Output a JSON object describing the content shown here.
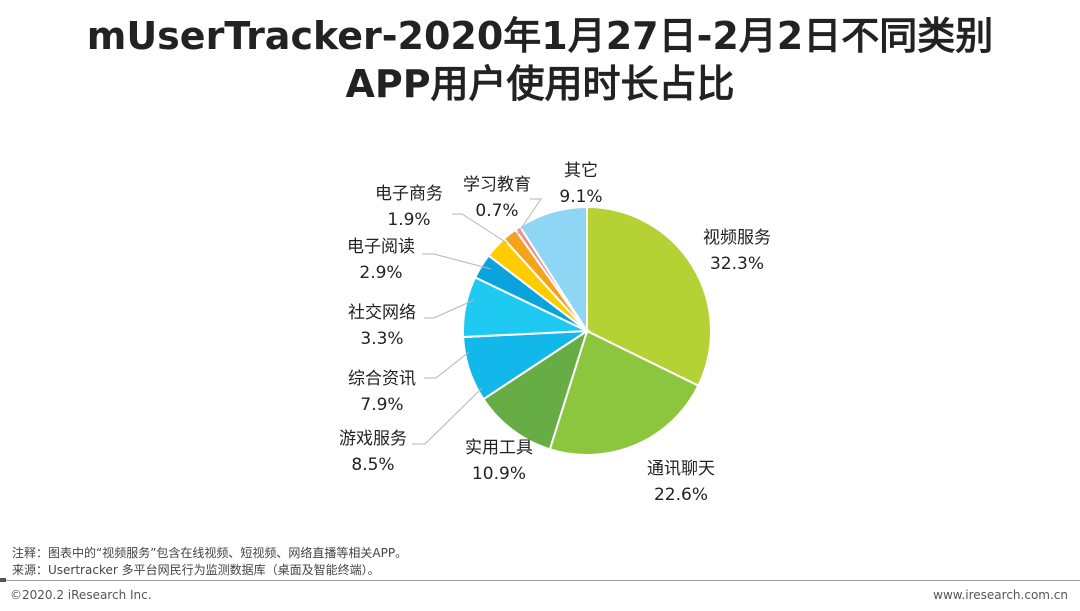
{
  "header": {
    "title_line1": "mUserTracker-2020年1月27日-2月2日不同类别",
    "title_line2": "APP用户使用时长占比"
  },
  "chart_data": {
    "type": "pie",
    "title": "mUserTracker-2020年1月27日-2月2日不同类别APP用户使用时长占比",
    "unit": "%",
    "slices": [
      {
        "label": "视频服务",
        "value": 32.3,
        "value_text": "32.3%",
        "color": "#b4d234"
      },
      {
        "label": "通讯聊天",
        "value": 22.6,
        "value_text": "22.6%",
        "color": "#8cc63e"
      },
      {
        "label": "实用工具",
        "value": 10.9,
        "value_text": "10.9%",
        "color": "#67ad45"
      },
      {
        "label": "游戏服务",
        "value": 8.5,
        "value_text": "8.5%",
        "color": "#12b8e9"
      },
      {
        "label": "综合资讯",
        "value": 7.9,
        "value_text": "7.9%",
        "color": "#1ec9f2"
      },
      {
        "label": "社交网络",
        "value": 3.3,
        "value_text": "3.3%",
        "color": "#0aa4dd"
      },
      {
        "label": "电子阅读",
        "value": 2.9,
        "value_text": "2.9%",
        "color": "#ffcc00"
      },
      {
        "label": "电子商务",
        "value": 1.9,
        "value_text": "1.9%",
        "color": "#f5a21d"
      },
      {
        "label": "学习教育",
        "value": 0.7,
        "value_text": "0.7%",
        "color": "#f28c8c"
      },
      {
        "label": "其它",
        "value": 9.1,
        "value_text": "9.1%",
        "color": "#8fd6f4"
      }
    ]
  },
  "notes": {
    "note": "注释：图表中的“视频服务”包含在线视频、短视频、网络直播等相关APP。",
    "source": "来源：Usertracker 多平台网民行为监测数据库（桌面及智能终端）。"
  },
  "footer": {
    "copyright": "©2020.2 iResearch Inc.",
    "website": "www.iresearch.com.cn"
  }
}
